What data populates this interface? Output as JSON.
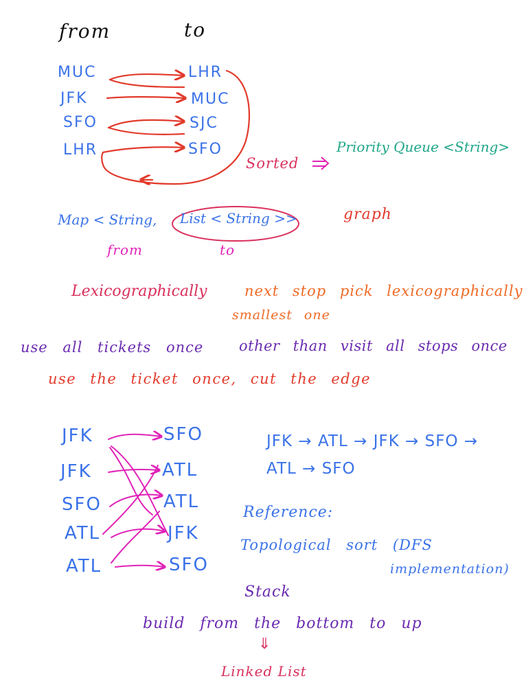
{
  "header": {
    "from": "from",
    "to": "to"
  },
  "example1": {
    "from": [
      "MUC",
      "JFK",
      "SFO",
      "LHR"
    ],
    "to": [
      "LHR",
      "MUC",
      "SJC",
      "SFO"
    ],
    "sorted": "Sorted",
    "implies": "⇒",
    "priority_queue": "Priority Queue <String>"
  },
  "map": {
    "type": "Map < String,",
    "list": "List < String >>",
    "graph": "graph",
    "from": "from",
    "to": "to"
  },
  "notes": {
    "lexico": "Lexicographically",
    "next_stop": "next stop pick lexicographically",
    "smallest": "smallest one",
    "use_all": "use all tickets once",
    "other": "other than visit all stops once",
    "use_ticket": "use the ticket once, cut the edge"
  },
  "example2": {
    "from": [
      "JFK",
      "JFK",
      "SFO",
      "ATL",
      "ATL"
    ],
    "to": [
      "SFO",
      "ATL",
      "ATL",
      "JFK",
      "SFO"
    ],
    "path1": "JFK → ATL → JFK → SFO →",
    "path2": "ATL → SFO"
  },
  "reference": {
    "label": "Reference:",
    "topo": "Topological sort (DFS",
    "impl": "implementation)"
  },
  "stack": {
    "label": "Stack",
    "build": "build from the bottom to up",
    "arrow": "⇓",
    "linked": "Linked List"
  },
  "colors": {
    "black": "#111111",
    "blue": "#3a72e8",
    "red": "#e23a2c",
    "magenta": "#e022b8",
    "green": "#1fa688",
    "orange": "#ef6a26",
    "purple": "#6a2bb0",
    "pink": "#d9305c"
  }
}
